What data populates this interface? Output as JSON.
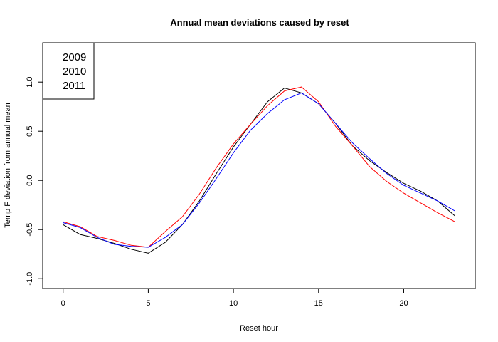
{
  "chart_data": {
    "type": "line",
    "title": "Annual mean deviations caused by reset",
    "xlabel": "Reset hour",
    "ylabel": "Temp F deviation from annual mean",
    "xlim": [
      -1.2,
      24.2
    ],
    "ylim": [
      -1.1,
      1.4
    ],
    "x_ticks": [
      0,
      5,
      10,
      15,
      20
    ],
    "x_tick_labels": [
      "0",
      "5",
      "10",
      "15",
      "20"
    ],
    "y_ticks": [
      -1.0,
      -0.5,
      0.0,
      0.5,
      1.0
    ],
    "y_tick_labels": [
      "-1.0",
      "-0.5",
      "0.0",
      "0.5",
      "1.0"
    ],
    "grid": false,
    "legend_position": "top-left",
    "x": [
      0,
      1,
      2,
      3,
      4,
      5,
      6,
      7,
      8,
      9,
      10,
      11,
      12,
      13,
      14,
      15,
      16,
      17,
      18,
      19,
      20,
      21,
      22,
      23
    ],
    "series": [
      {
        "name": "2009",
        "color": "#000000",
        "values": [
          -0.45,
          -0.55,
          -0.59,
          -0.64,
          -0.7,
          -0.74,
          -0.63,
          -0.45,
          -0.21,
          0.07,
          0.34,
          0.57,
          0.8,
          0.94,
          0.89,
          0.78,
          0.58,
          0.35,
          0.2,
          0.08,
          -0.03,
          -0.11,
          -0.21,
          -0.36
        ]
      },
      {
        "name": "2010",
        "color": "#ff0000",
        "values": [
          -0.42,
          -0.47,
          -0.57,
          -0.61,
          -0.66,
          -0.68,
          -0.52,
          -0.37,
          -0.14,
          0.13,
          0.37,
          0.57,
          0.76,
          0.91,
          0.95,
          0.8,
          0.55,
          0.35,
          0.14,
          -0.01,
          -0.13,
          -0.23,
          -0.33,
          -0.42
        ]
      },
      {
        "name": "2011",
        "color": "#0000ff",
        "values": [
          -0.43,
          -0.48,
          -0.58,
          -0.65,
          -0.67,
          -0.68,
          -0.58,
          -0.45,
          -0.23,
          0.02,
          0.28,
          0.51,
          0.68,
          0.82,
          0.89,
          0.78,
          0.58,
          0.38,
          0.22,
          0.07,
          -0.05,
          -0.13,
          -0.21,
          -0.31
        ]
      }
    ]
  }
}
